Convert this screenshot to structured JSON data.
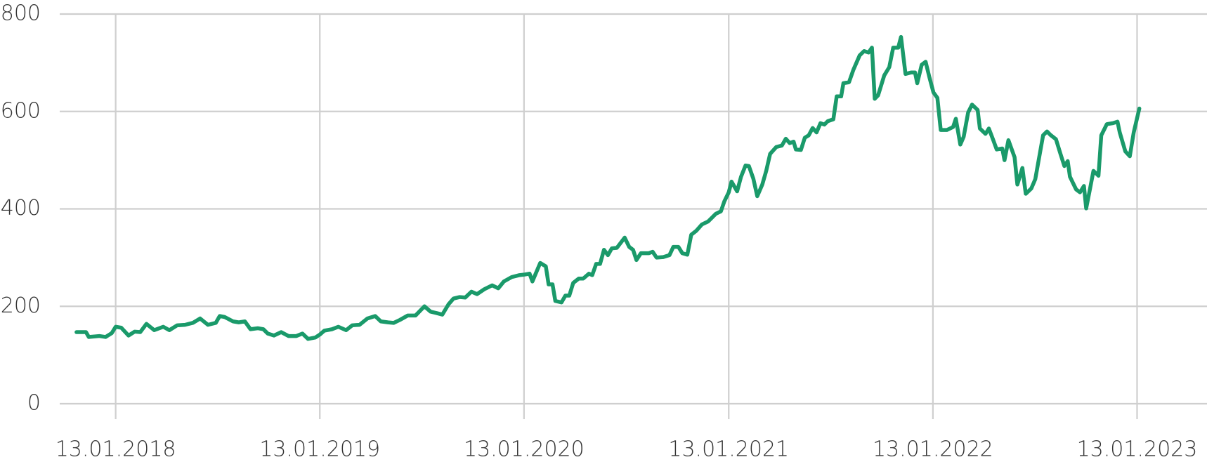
{
  "chart_data": {
    "type": "line",
    "x": [
      "2017-11-04",
      "2017-11-21",
      "2017-11-26",
      "2017-12-15",
      "2017-12-26",
      "2018-01-06",
      "2018-01-13",
      "2018-01-23",
      "2018-02-05",
      "2018-02-16",
      "2018-02-26",
      "2018-03-09",
      "2018-03-23",
      "2018-04-08",
      "2018-04-19",
      "2018-05-03",
      "2018-05-17",
      "2018-05-31",
      "2018-06-13",
      "2018-06-27",
      "2018-07-11",
      "2018-07-18",
      "2018-07-27",
      "2018-08-11",
      "2018-08-21",
      "2018-09-01",
      "2018-09-11",
      "2018-09-24",
      "2018-10-04",
      "2018-10-12",
      "2018-10-23",
      "2018-11-05",
      "2018-11-18",
      "2018-12-02",
      "2018-12-13",
      "2018-12-23",
      "2019-01-05",
      "2019-01-13",
      "2019-01-21",
      "2019-02-04",
      "2019-02-15",
      "2019-03-01",
      "2019-03-12",
      "2019-03-25",
      "2019-04-08",
      "2019-04-22",
      "2019-05-02",
      "2019-05-15",
      "2019-05-25",
      "2019-06-05",
      "2019-06-19",
      "2019-07-03",
      "2019-07-19",
      "2019-07-30",
      "2019-08-10",
      "2019-08-20",
      "2019-08-31",
      "2019-09-09",
      "2019-09-20",
      "2019-09-30",
      "2019-10-11",
      "2019-10-21",
      "2019-11-03",
      "2019-11-17",
      "2019-11-28",
      "2019-12-08",
      "2019-12-22",
      "2020-01-05",
      "2020-01-13",
      "2020-01-23",
      "2020-01-28",
      "2020-02-11",
      "2020-02-21",
      "2020-02-26",
      "2020-03-04",
      "2020-03-09",
      "2020-03-20",
      "2020-03-27",
      "2020-04-03",
      "2020-04-10",
      "2020-04-20",
      "2020-04-28",
      "2020-05-08",
      "2020-05-14",
      "2020-05-21",
      "2020-05-28",
      "2020-06-04",
      "2020-06-11",
      "2020-06-18",
      "2020-06-27",
      "2020-07-11",
      "2020-07-19",
      "2020-07-26",
      "2020-08-01",
      "2020-08-09",
      "2020-08-23",
      "2020-08-30",
      "2020-09-06",
      "2020-09-18",
      "2020-09-29",
      "2020-10-06",
      "2020-10-15",
      "2020-10-22",
      "2020-10-31",
      "2020-11-07",
      "2020-11-16",
      "2020-11-26",
      "2020-12-07",
      "2020-12-21",
      "2020-12-30",
      "2021-01-05",
      "2021-01-13",
      "2021-01-18",
      "2021-01-28",
      "2021-02-04",
      "2021-02-12",
      "2021-02-18",
      "2021-02-26",
      "2021-03-05",
      "2021-03-14",
      "2021-03-21",
      "2021-03-28",
      "2021-04-08",
      "2021-04-18",
      "2021-04-25",
      "2021-05-02",
      "2021-05-09",
      "2021-05-13",
      "2021-05-22",
      "2021-05-29",
      "2021-06-05",
      "2021-06-12",
      "2021-06-19",
      "2021-06-26",
      "2021-07-03",
      "2021-07-09",
      "2021-07-19",
      "2021-07-25",
      "2021-08-02",
      "2021-08-06",
      "2021-08-16",
      "2021-08-24",
      "2021-09-04",
      "2021-09-12",
      "2021-09-20",
      "2021-09-26",
      "2021-10-01",
      "2021-10-07",
      "2021-10-18",
      "2021-10-27",
      "2021-11-03",
      "2021-11-12",
      "2021-11-17",
      "2021-11-25",
      "2021-12-05",
      "2021-12-12",
      "2021-12-16",
      "2021-12-24",
      "2021-12-31",
      "2022-01-07",
      "2022-01-14",
      "2022-01-21",
      "2022-01-27",
      "2022-02-07",
      "2022-02-18",
      "2022-02-23",
      "2022-03-03",
      "2022-03-09",
      "2022-03-17",
      "2022-03-24",
      "2022-04-03",
      "2022-04-07",
      "2022-04-17",
      "2022-04-23",
      "2022-04-30",
      "2022-05-07",
      "2022-05-17",
      "2022-05-21",
      "2022-05-28",
      "2022-06-08",
      "2022-06-13",
      "2022-06-22",
      "2022-06-28",
      "2022-07-08",
      "2022-07-15",
      "2022-07-29",
      "2022-08-05",
      "2022-08-11",
      "2022-08-21",
      "2022-08-29",
      "2022-09-05",
      "2022-09-11",
      "2022-09-15",
      "2022-09-26",
      "2022-10-03",
      "2022-10-10",
      "2022-10-14",
      "2022-10-21",
      "2022-10-27",
      "2022-11-05",
      "2022-11-10",
      "2022-11-20",
      "2022-12-01",
      "2022-12-09",
      "2022-12-13",
      "2022-12-23",
      "2022-12-31",
      "2023-01-07",
      "2023-01-17"
    ],
    "series": [
      {
        "color": "#1a9a6a",
        "values": [
          147,
          147,
          137,
          139,
          137,
          145,
          158,
          156,
          140,
          148,
          147,
          164,
          151,
          158,
          151,
          161,
          162,
          166,
          175,
          162,
          166,
          180,
          178,
          169,
          167,
          169,
          153,
          155,
          153,
          144,
          140,
          147,
          139,
          139,
          144,
          133,
          136,
          142,
          150,
          153,
          158,
          151,
          161,
          162,
          175,
          180,
          169,
          167,
          166,
          172,
          181,
          181,
          200,
          189,
          186,
          183,
          204,
          216,
          219,
          218,
          230,
          225,
          235,
          243,
          237,
          251,
          260,
          264,
          265,
          267,
          251,
          289,
          282,
          245,
          245,
          211,
          208,
          222,
          222,
          248,
          257,
          257,
          267,
          264,
          287,
          287,
          316,
          305,
          319,
          320,
          341,
          322,
          316,
          295,
          309,
          309,
          312,
          300,
          301,
          305,
          322,
          322,
          309,
          306,
          347,
          355,
          368,
          374,
          390,
          395,
          415,
          434,
          456,
          436,
          466,
          489,
          488,
          462,
          426,
          450,
          478,
          513,
          527,
          530,
          544,
          535,
          538,
          522,
          521,
          546,
          551,
          566,
          557,
          576,
          573,
          580,
          584,
          631,
          631,
          658,
          660,
          686,
          715,
          724,
          721,
          731,
          626,
          633,
          674,
          691,
          731,
          731,
          753,
          677,
          680,
          680,
          658,
          696,
          702,
          669,
          639,
          628,
          562,
          562,
          568,
          585,
          532,
          548,
          598,
          614,
          603,
          565,
          554,
          565,
          544,
          522,
          524,
          500,
          541,
          506,
          450,
          484,
          431,
          442,
          461,
          551,
          559,
          552,
          543,
          513,
          488,
          498,
          466,
          440,
          434,
          447,
          401,
          442,
          478,
          468,
          551,
          574,
          576,
          579,
          557,
          518,
          508,
          557,
          606
        ]
      }
    ],
    "xlim": [
      "2017-10-05",
      "2023-05-18"
    ],
    "xticks": [
      {
        "value": "2018-01-13",
        "label": "13.01.2018"
      },
      {
        "value": "2019-01-13",
        "label": "13.01.2019"
      },
      {
        "value": "2020-01-13",
        "label": "13.01.2020"
      },
      {
        "value": "2021-01-13",
        "label": "13.01.2021"
      },
      {
        "value": "2022-01-13",
        "label": "13.01.2022"
      },
      {
        "value": "2023-01-13",
        "label": "13.01.2023"
      }
    ],
    "ylim": [
      0,
      800
    ],
    "yticks": [
      0,
      200,
      400,
      600,
      800
    ],
    "grid": true
  }
}
